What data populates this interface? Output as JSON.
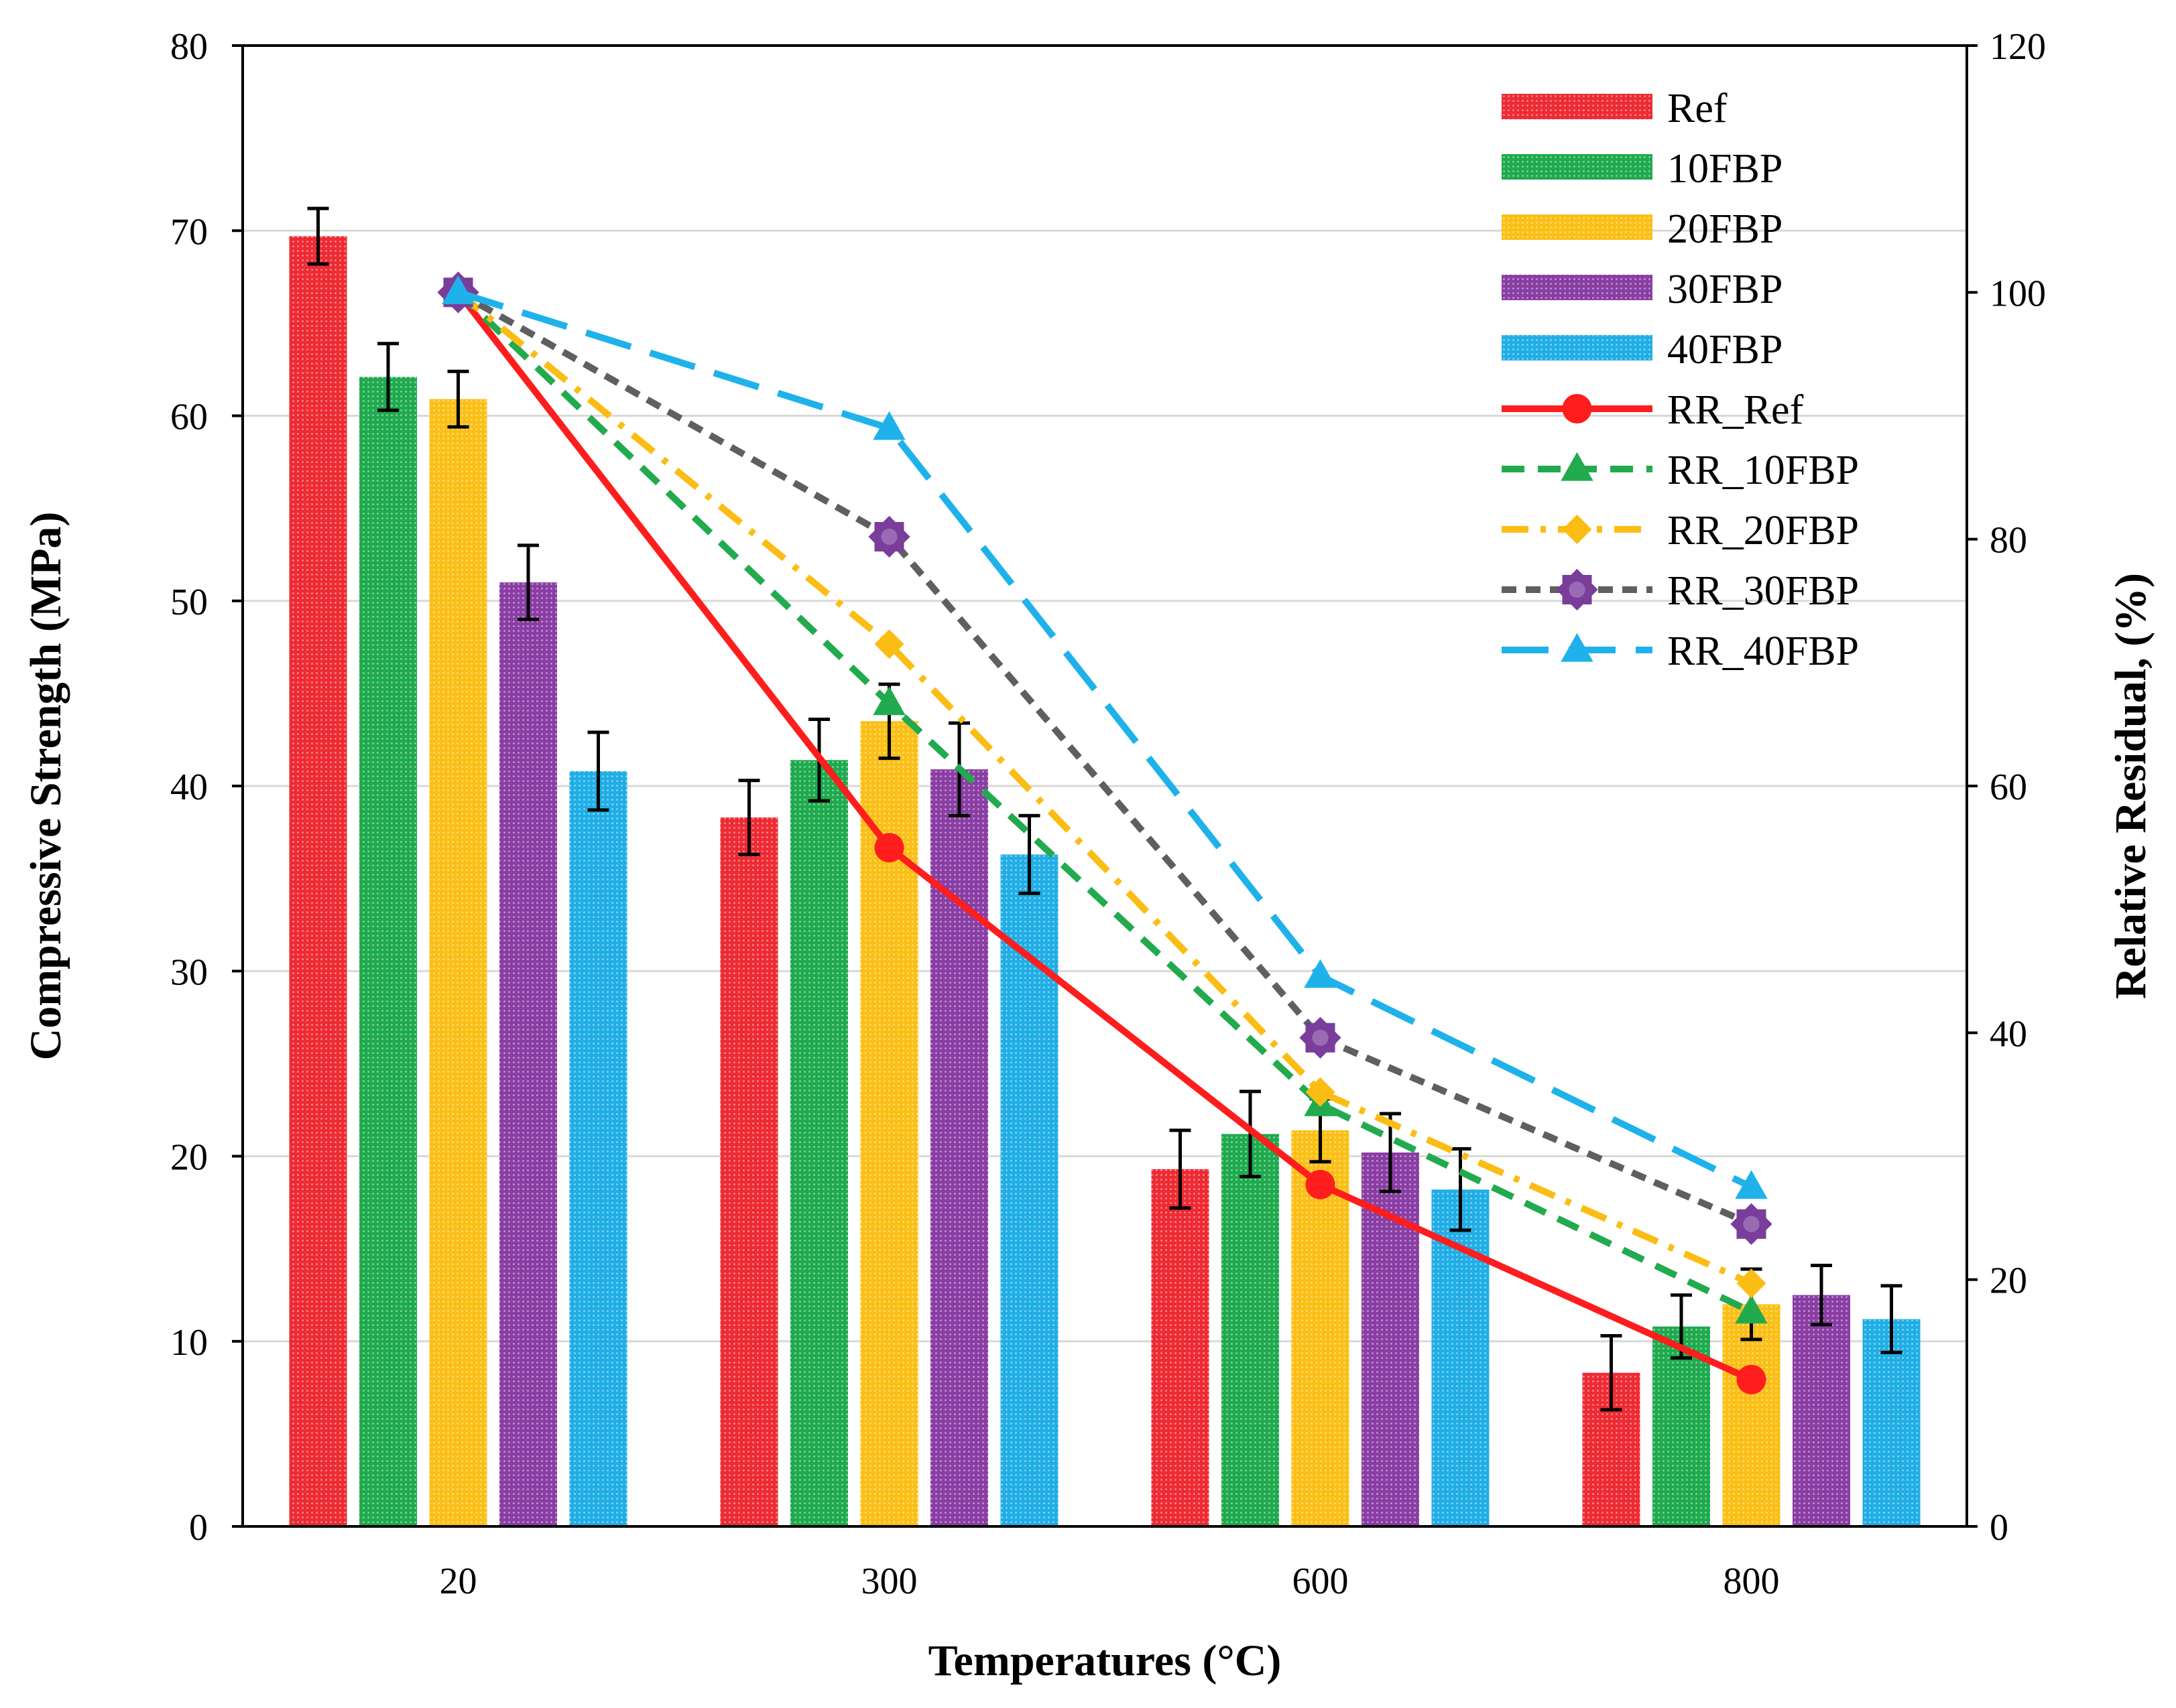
{
  "chart_data": {
    "type": "bar",
    "categories": [
      "20",
      "300",
      "600",
      "800"
    ],
    "xlabel": "Temperatures (°C)",
    "ylabel": "Compressive Strength (MPa)",
    "y2label": "Relative Residual,   (%)",
    "ylim": [
      0,
      80
    ],
    "y2lim": [
      0,
      120
    ],
    "yticks": [
      "0",
      "10",
      "20",
      "30",
      "40",
      "50",
      "60",
      "70",
      "80"
    ],
    "y2ticks": [
      "0",
      "20",
      "40",
      "60",
      "80",
      "100",
      "120"
    ],
    "grid": true,
    "legend_position": "top-right",
    "bar_series": [
      {
        "name": "Ref",
        "color": "#ee2b33",
        "values": [
          69.7,
          38.3,
          19.3,
          8.3
        ],
        "errors": [
          1.5,
          2.0,
          2.1,
          2.0
        ]
      },
      {
        "name": "10FBP",
        "color": "#1faa4e",
        "values": [
          62.1,
          41.4,
          21.2,
          10.8
        ],
        "errors": [
          1.8,
          2.2,
          2.3,
          1.7
        ]
      },
      {
        "name": "20FBP",
        "color": "#fbbf16",
        "values": [
          60.9,
          43.5,
          21.4,
          12.0
        ],
        "errors": [
          1.5,
          2.0,
          1.7,
          1.9
        ]
      },
      {
        "name": "30FBP",
        "color": "#8a3ea4",
        "values": [
          51.0,
          40.9,
          20.2,
          12.5
        ],
        "errors": [
          2.0,
          2.5,
          2.1,
          1.6
        ]
      },
      {
        "name": "40FBP",
        "color": "#21aee6",
        "values": [
          40.8,
          36.3,
          18.2,
          11.2
        ],
        "errors": [
          2.1,
          2.1,
          2.2,
          1.8
        ]
      }
    ],
    "line_series": [
      {
        "name": "RR_Ref",
        "color": "#ff1d1d",
        "marker": "circle",
        "dash": "solid",
        "values": [
          100,
          55,
          27.7,
          11.9
        ]
      },
      {
        "name": "RR_10FBP",
        "color": "#22aa4e",
        "marker": "triangle",
        "dash": "dash",
        "values": [
          100,
          66.7,
          34.2,
          17.4
        ]
      },
      {
        "name": "RR_20FBP",
        "color": "#fbbd14",
        "marker": "diamond",
        "dash": "dashdot",
        "values": [
          100,
          71.5,
          35.2,
          19.7
        ]
      },
      {
        "name": "RR_30FBP",
        "color": "#5f5f5f",
        "marker": "star",
        "dash": "dot",
        "values": [
          100,
          80.2,
          39.6,
          24.5
        ]
      },
      {
        "name": "RR_40FBP",
        "color": "#1fb2ea",
        "marker": "triangle",
        "dash": "longdash",
        "values": [
          100,
          89.0,
          44.6,
          27.5
        ]
      }
    ]
  }
}
